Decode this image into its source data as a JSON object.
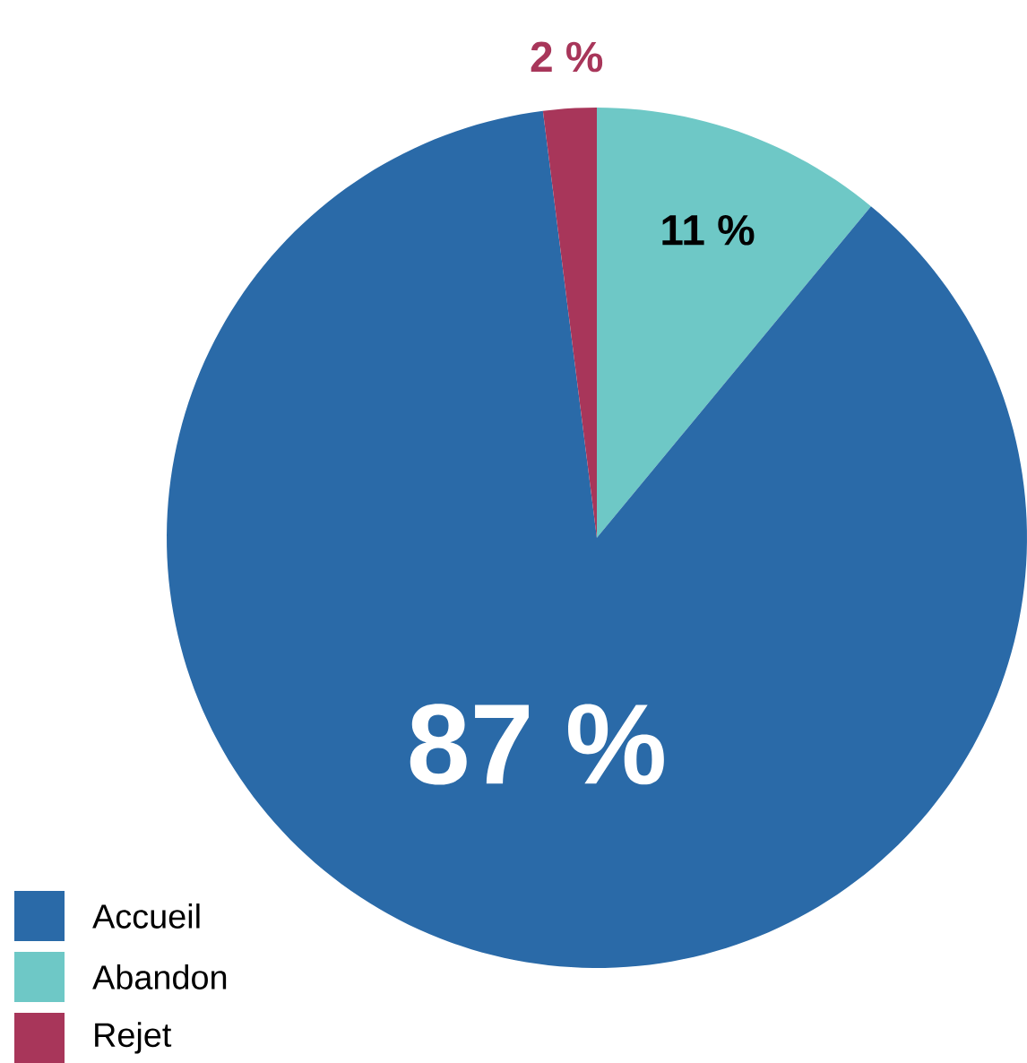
{
  "chart_data": {
    "type": "pie",
    "categories": [
      "Accueil",
      "Abandon",
      "Rejet"
    ],
    "values": [
      87,
      11,
      2
    ],
    "colors": [
      "#2a6aa8",
      "#6ec8c6",
      "#a8365a"
    ],
    "value_labels": [
      "87 %",
      "11 %",
      "2 %"
    ],
    "legend": "bottom left"
  }
}
